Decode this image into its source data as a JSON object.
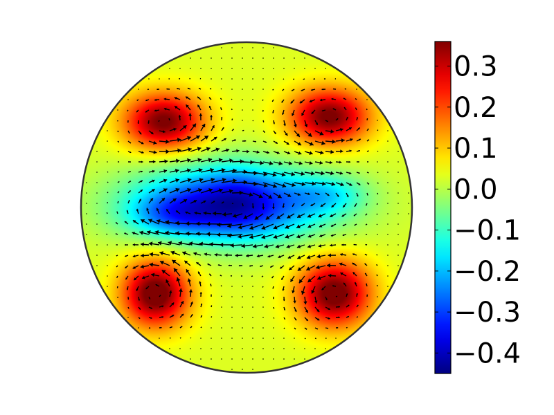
{
  "chart_data": {
    "type": "heatmap",
    "plot_shape": "circular-disk",
    "colormap": "jet",
    "color_range": [
      -0.45,
      0.36
    ],
    "colorbar": {
      "placement": "right",
      "ticks": [
        {
          "value": 0.3,
          "label": "0.3"
        },
        {
          "value": 0.2,
          "label": "0.2"
        },
        {
          "value": 0.1,
          "label": "0.1"
        },
        {
          "value": 0.0,
          "label": "0.0"
        },
        {
          "value": -0.1,
          "label": "−0.1"
        },
        {
          "value": -0.2,
          "label": "−0.2"
        },
        {
          "value": -0.3,
          "label": "−0.3"
        },
        {
          "value": -0.4,
          "label": "−0.4"
        }
      ]
    },
    "overlay": "quiver (black arrows showing flow direction)",
    "field_features": [
      {
        "kind": "positive-lobe",
        "location": "upper-left",
        "peak": 0.34
      },
      {
        "kind": "positive-lobe",
        "location": "upper-right",
        "peak": 0.34
      },
      {
        "kind": "positive-lobe",
        "location": "lower-left",
        "peak": 0.36
      },
      {
        "kind": "positive-lobe",
        "location": "lower-right",
        "peak": 0.35
      },
      {
        "kind": "negative-band",
        "location": "center-horizontal",
        "peak": -0.44
      }
    ]
  }
}
